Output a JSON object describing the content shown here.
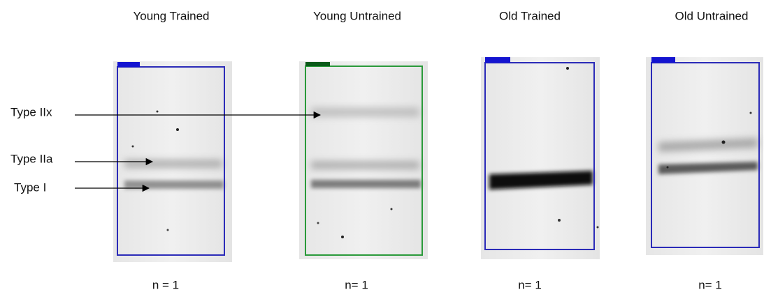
{
  "panels": [
    {
      "title": "Young Trained",
      "n": "n = 1"
    },
    {
      "title": "Young Untrained",
      "n": "n= 1"
    },
    {
      "title": "Old Trained",
      "n": "n= 1"
    },
    {
      "title": "Old Untrained",
      "n": "n= 1"
    }
  ],
  "bands": [
    "Type IIx",
    "Type IIa",
    "Type I"
  ]
}
